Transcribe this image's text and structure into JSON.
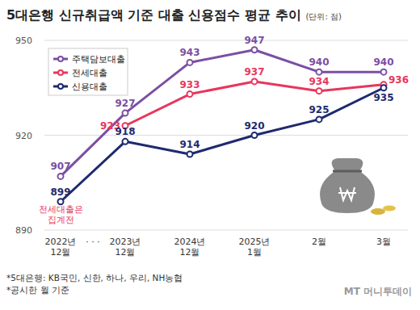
{
  "chart_data": {
    "type": "line",
    "title": "5대은행 신규취급액 기준 대출 신용점수 평균 추이",
    "subtitle": "(단위: 점)",
    "categories": [
      "2022년\n12월",
      "2023년\n12월",
      "2024년\n12월",
      "2025년\n1월",
      "2월",
      "3월"
    ],
    "series": [
      {
        "name": "주택담보대출",
        "color": "#7b4fa3",
        "values": [
          907,
          927,
          943,
          947,
          940,
          940
        ],
        "marker": "circle"
      },
      {
        "name": "전세대출",
        "color": "#e8365d",
        "values": [
          null,
          923,
          933,
          937,
          934,
          936
        ],
        "marker": "circle"
      },
      {
        "name": "신용대출",
        "color": "#1e2a6e",
        "values": [
          899,
          918,
          914,
          920,
          925,
          935
        ],
        "marker": "circle"
      }
    ],
    "ylim": [
      890,
      950
    ],
    "yticks": [
      890,
      920,
      950
    ],
    "grid": true,
    "legend": "upper left",
    "data_labels": true,
    "annotations": [
      "전세대출은\n집계전",
      "· · ·"
    ],
    "notes": [
      "*5대은행: KB국민, 신한, 하나, 우리, NH농협",
      "*공시한 월 기준"
    ],
    "source": "MT 머니투데이"
  }
}
